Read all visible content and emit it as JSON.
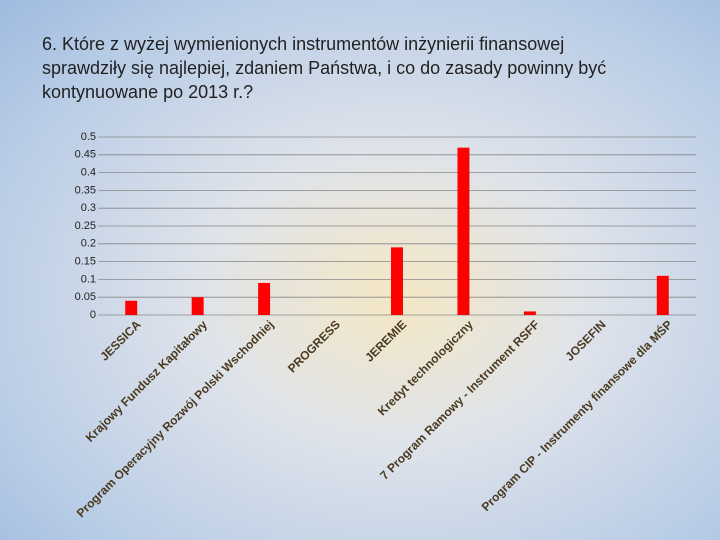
{
  "chart_data": {
    "type": "bar",
    "title": "6. Które z wyżej wymienionych instrumentów inżynierii finansowej sprawdziły się najlepiej, zdaniem Państwa, i co do zasady powinny być kontynuowane po 2013 r.?",
    "categories": [
      "JESSICA",
      "Krajowy Fundusz Kapitałowy",
      "Program Operacyjny Rozwój Polski Wschodniej",
      "PROGRESS",
      "JEREMIE",
      "Kredyt technologiczny",
      "7 Program Ramowy - Instrument RSFF",
      "JOSEFIN",
      "Program CIP - Instrumenty finansowe dla MŚP"
    ],
    "values": [
      0.04,
      0.05,
      0.09,
      0,
      0.19,
      0.47,
      0.01,
      0,
      0.11
    ],
    "color": "#ff0000",
    "ylim": [
      0,
      0.5
    ],
    "yticks": [
      0,
      0.05,
      0.1,
      0.15,
      0.2,
      0.25,
      0.3,
      0.35,
      0.4,
      0.45,
      0.5
    ],
    "grid": true
  }
}
